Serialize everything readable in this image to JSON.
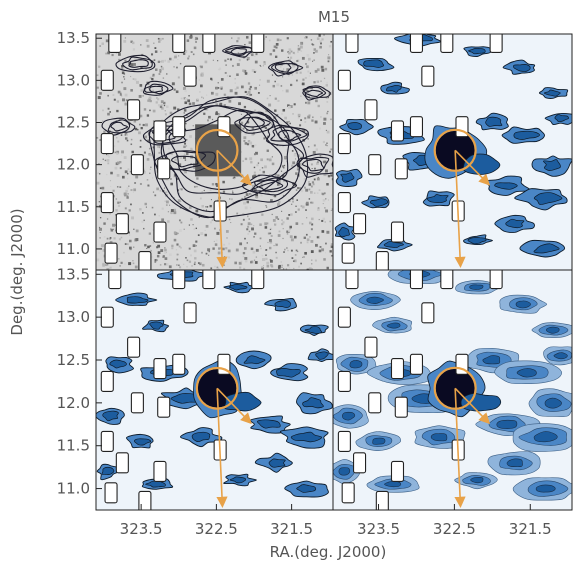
{
  "chart_data": {
    "type": "contour-map",
    "title": "M15",
    "xlabel": "RA.(deg. J2000)",
    "ylabel": "Deg.(deg. J2000)",
    "xlim": [
      324.1,
      320.95
    ],
    "ylim": [
      10.75,
      13.55
    ],
    "x_ticks": [
      "323.5",
      "322.5",
      "321.5"
    ],
    "x_tick_values": [
      323.5,
      322.5,
      321.5
    ],
    "y_ticks_top": [
      "11.0",
      "11.5",
      "12.0",
      "12.5",
      "13.0",
      "13.5"
    ],
    "y_ticks_bottom": [
      "11.0",
      "11.5",
      "12.0",
      "12.5",
      "13.0",
      "13.5"
    ],
    "y_tick_values": [
      11.0,
      11.5,
      12.0,
      12.5,
      13.0,
      13.5
    ],
    "panels": [
      {
        "position": "top-left",
        "style": "greyscale-star-counts-with-contours"
      },
      {
        "position": "top-right",
        "style": "filled-blue-contours"
      },
      {
        "position": "bottom-left",
        "style": "filled-blue-contours"
      },
      {
        "position": "bottom-right",
        "style": "filled-blue-contours-smoothed"
      }
    ],
    "cluster_center": {
      "ra": 322.49,
      "dec": 12.17
    },
    "tidal_circle_radius_deg": 0.27,
    "arrows": [
      {
        "name": "proper-motion",
        "from": [
          322.49,
          12.17
        ],
        "to": [
          322.42,
          10.8
        ]
      },
      {
        "name": "galactic-center",
        "from": [
          322.49,
          12.17
        ],
        "to": [
          322.05,
          11.77
        ]
      }
    ],
    "masked_boxes": [
      [
        323.85,
        13.45
      ],
      [
        323.0,
        13.45
      ],
      [
        322.6,
        13.45
      ],
      [
        321.95,
        13.45
      ],
      [
        323.95,
        13.0
      ],
      [
        322.85,
        13.05
      ],
      [
        323.6,
        12.65
      ],
      [
        323.25,
        12.4
      ],
      [
        323.0,
        12.45
      ],
      [
        322.4,
        12.45
      ],
      [
        323.95,
        12.25
      ],
      [
        323.55,
        12.0
      ],
      [
        323.2,
        11.95
      ],
      [
        323.95,
        11.55
      ],
      [
        322.45,
        11.45
      ],
      [
        323.75,
        11.3
      ],
      [
        323.25,
        11.2
      ],
      [
        323.9,
        10.95
      ],
      [
        323.45,
        10.85
      ]
    ],
    "colors": {
      "background": "#eef4fa",
      "contour_light": "#8fb4db",
      "contour_mid": "#4a86c6",
      "contour_dark": "#1c5c9e",
      "core": "#0a0a22",
      "outline": "#0d1b2a",
      "circle": "#e8a248",
      "arrow": "#e8a248",
      "grey_bg": "#d8d8d8",
      "grey_speck": "#6a6a6a"
    }
  }
}
